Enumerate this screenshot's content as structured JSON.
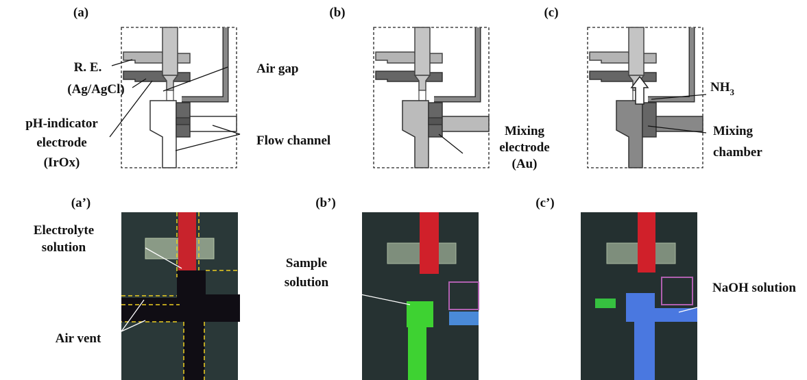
{
  "panels": [
    {
      "label": "(a)",
      "annotations": [
        "R. E.",
        "(Ag/AgCl)",
        "pH-indicator",
        "electrode",
        "(IrOx)",
        "Air gap",
        "Flow channel"
      ]
    },
    {
      "label": "(b)",
      "annotations": [
        "Mixing",
        "electrode",
        "(Au)"
      ]
    },
    {
      "label": "(c)",
      "annotations": [
        {
          "text": "NH",
          "subscript": "3"
        },
        "Mixing",
        "chamber"
      ]
    },
    {
      "label": "(a’)",
      "annotations": [
        "Electrolyte",
        "solution",
        "Air vent"
      ]
    },
    {
      "label": "(b’)",
      "annotations": [
        "Sample",
        "solution"
      ]
    },
    {
      "label": "(c’)",
      "annotations": [
        "NaOH solution"
      ]
    }
  ]
}
